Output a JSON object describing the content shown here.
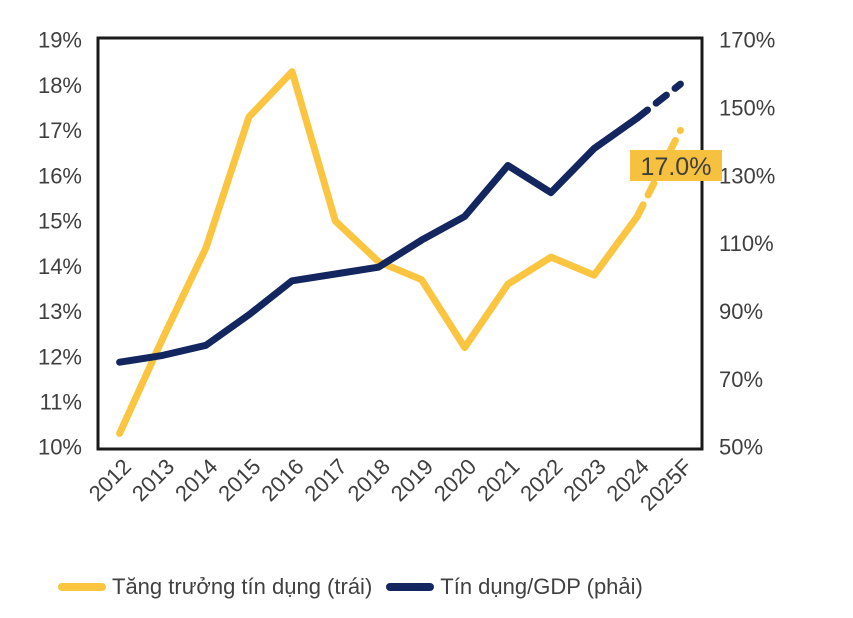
{
  "chart_data": {
    "type": "line",
    "title": "",
    "categories": [
      "2012",
      "2013",
      "2014",
      "2015",
      "2016",
      "2017",
      "2018",
      "2019",
      "2020",
      "2021",
      "2022",
      "2023",
      "2024",
      "2025F"
    ],
    "series": [
      {
        "name": "Tăng trưởng tín dụng (trái)",
        "axis": "left",
        "color": "#FBC540",
        "last_segment_style": "dashed",
        "values": [
          10.3,
          12.4,
          14.4,
          17.3,
          18.3,
          15.0,
          14.1,
          13.7,
          12.2,
          13.6,
          14.2,
          13.8,
          15.1,
          17.0
        ]
      },
      {
        "name": "Tín dụng/GDP (phải)",
        "axis": "right",
        "color": "#13265F",
        "last_segment_style": "dashed",
        "values": [
          75,
          77,
          80,
          89,
          99,
          101,
          103,
          111,
          118,
          133,
          125,
          138,
          147,
          157
        ]
      }
    ],
    "left_axis": {
      "min": 10,
      "max": 19,
      "tick_values": [
        19,
        18,
        17,
        16,
        15,
        14,
        13,
        12,
        11,
        10
      ],
      "tick_labels": [
        "19%",
        "18%",
        "17%",
        "16%",
        "15%",
        "14%",
        "13%",
        "12%",
        "11%",
        "10%"
      ]
    },
    "right_axis": {
      "min": 50,
      "max": 170,
      "tick_values": [
        170,
        150,
        130,
        110,
        90,
        70,
        50
      ],
      "tick_labels": [
        "170%",
        "150%",
        "130%",
        "110%",
        "90%",
        "70%",
        "50%"
      ]
    },
    "grid": false,
    "legend_position": "bottom"
  },
  "annotation": {
    "label": "17.0%",
    "series": "Tăng trưởng tín dụng (trái)",
    "category": "2025F"
  },
  "legend": {
    "items": [
      {
        "label": "Tăng trưởng tín dụng (trái)",
        "color": "#FBC540"
      },
      {
        "label": "Tín dụng/GDP (phải)",
        "color": "#13265F"
      }
    ]
  },
  "colors": {
    "credit_growth_line": "#FBC540",
    "credit_gdp_line": "#13265F",
    "annotation_bg": "#F5C13E",
    "annotation_text": "#3F3F3F",
    "axis_text": "#3F3F3F",
    "plot_border": "#1A1A1A",
    "background": "#FFFFFF"
  }
}
